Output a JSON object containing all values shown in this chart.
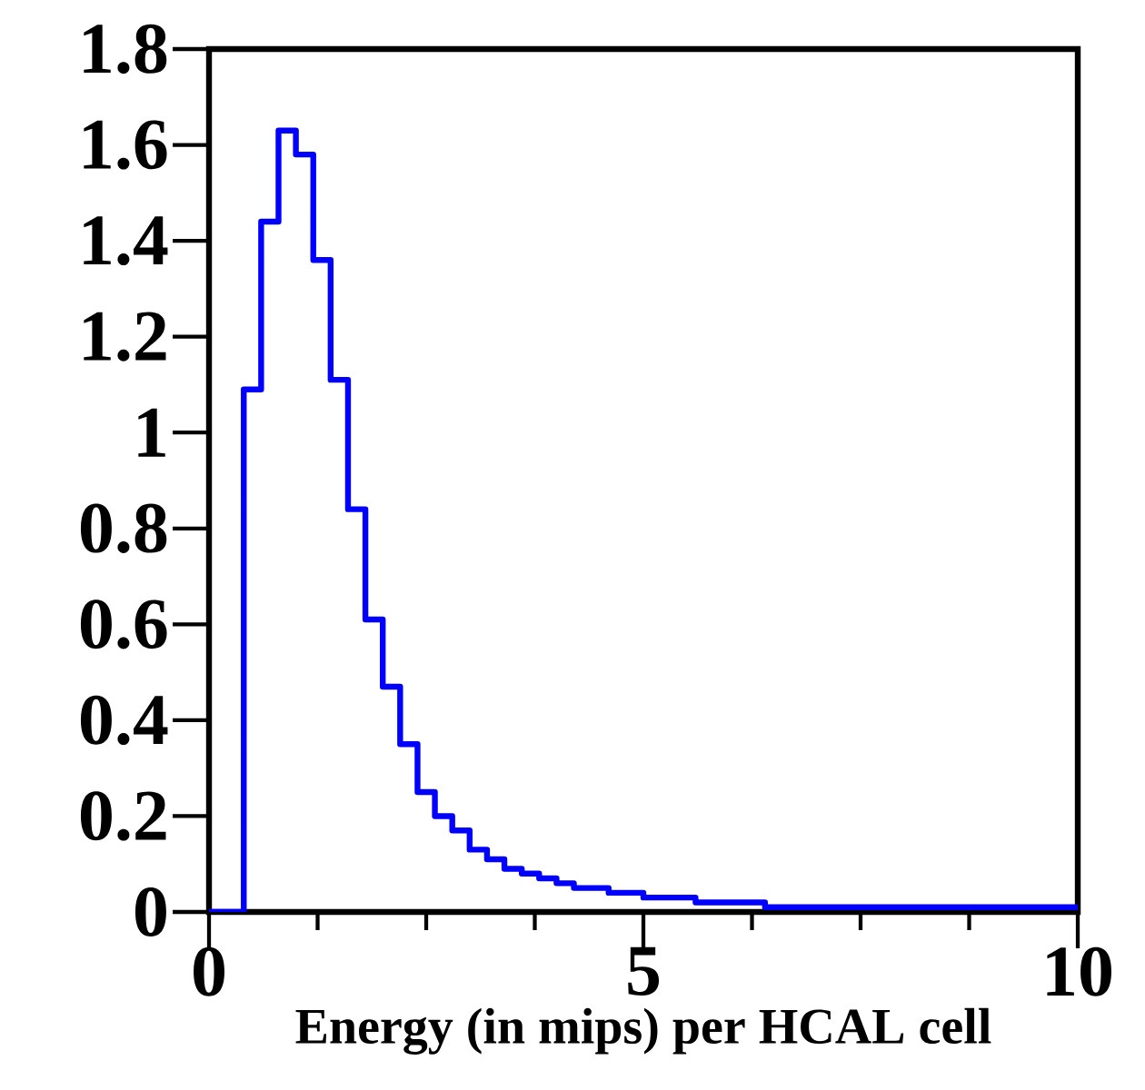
{
  "chart_data": {
    "type": "histogram",
    "xlabel": "Energy (in mips) per HCAL cell",
    "bins": [
      0,
      0.2,
      0.4,
      0.6,
      0.8,
      1,
      1.2,
      1.4,
      1.6,
      1.8,
      2,
      2.2,
      2.4,
      2.6,
      2.8,
      3,
      3.2,
      3.4,
      3.6,
      3.8,
      4,
      4.2,
      4.4,
      4.6,
      4.8,
      5,
      5.2,
      5.4,
      5.6,
      5.8,
      6,
      6.2,
      6.4,
      6.6,
      6.8,
      7,
      7.2,
      7.4,
      7.6,
      7.8,
      8,
      8.2,
      8.4,
      8.6,
      8.8,
      9,
      9.2,
      9.4,
      9.6,
      9.8,
      10
    ],
    "values": [
      0,
      0,
      1.09,
      1.44,
      1.63,
      1.58,
      1.36,
      1.11,
      0.84,
      0.61,
      0.47,
      0.35,
      0.25,
      0.2,
      0.17,
      0.13,
      0.11,
      0.09,
      0.08,
      0.07,
      0.06,
      0.05,
      0.05,
      0.04,
      0.04,
      0.03,
      0.03,
      0.03,
      0.02,
      0.02,
      0.02,
      0.02,
      0.01,
      0.01,
      0.01,
      0.01,
      0.01,
      0.01,
      0.01,
      0.01,
      0.01,
      0.01,
      0.01,
      0.01,
      0.01,
      0.01,
      0.01,
      0.01,
      0.01,
      0.01
    ],
    "color": "#0000ff",
    "xlim": [
      0,
      10
    ],
    "ylim": [
      0,
      1.8
    ],
    "xticks": [
      0,
      5,
      10
    ],
    "yticks": [
      0,
      0.2,
      0.4,
      0.6,
      0.8,
      1,
      1.2,
      1.4,
      1.6,
      1.8
    ]
  }
}
